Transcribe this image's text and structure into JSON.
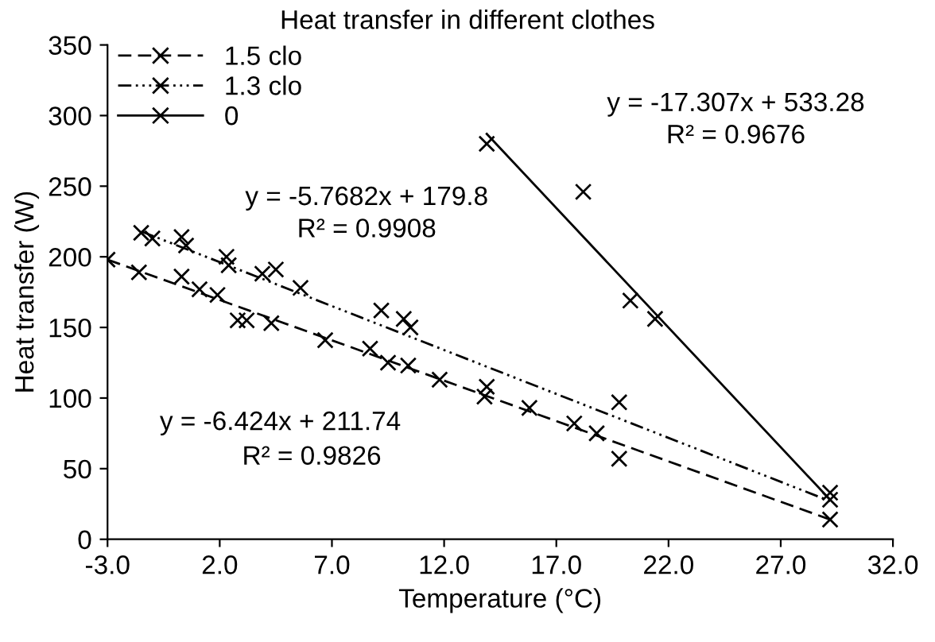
{
  "chart_data": {
    "type": "scatter",
    "title": "Heat transfer in different clothes",
    "xlabel": "Temperature (°C)",
    "ylabel": "Heat transfer (W)",
    "xlim": [
      -3,
      32
    ],
    "xticks": [
      {
        "value": -3,
        "label": "-3.0"
      },
      {
        "value": 2,
        "label": "2.0"
      },
      {
        "value": 7,
        "label": "7.0"
      },
      {
        "value": 12,
        "label": "12.0"
      },
      {
        "value": 17,
        "label": "17.0"
      },
      {
        "value": 22,
        "label": "22.0"
      },
      {
        "value": 27,
        "label": "27.0"
      },
      {
        "value": 32,
        "label": "32.0"
      }
    ],
    "ylim": [
      0,
      350
    ],
    "yticks": [
      0,
      50,
      100,
      150,
      200,
      250,
      300,
      350
    ],
    "grid": false,
    "legend": "top left",
    "marker": "cross",
    "series": [
      {
        "color": "#000000",
        "x": [
          -3.0,
          -1.6,
          0.3,
          1.1,
          1.9,
          2.8,
          3.2,
          4.3,
          6.7,
          8.7,
          9.5,
          10.4,
          11.8,
          13.8,
          15.8,
          17.8,
          18.8,
          19.8,
          29.2
        ],
        "values": [
          198,
          189,
          186,
          177,
          173,
          155,
          155,
          153,
          141,
          135,
          125,
          123,
          113,
          101,
          93,
          82,
          75,
          57,
          14
        ]
      },
      {
        "color": "#000000",
        "x": [
          -1.5,
          -1.0,
          0.3,
          0.5,
          2.3,
          2.4,
          3.9,
          4.5,
          5.6,
          9.2,
          10.2,
          10.5,
          13.9,
          19.8,
          29.2
        ],
        "values": [
          217,
          213,
          214,
          208,
          200,
          194,
          188,
          191,
          178,
          162,
          156,
          150,
          108,
          97,
          28
        ]
      },
      {
        "color": "#000000",
        "x": [
          13.9,
          18.2,
          20.3,
          21.4,
          29.2
        ],
        "values": [
          280,
          246,
          169,
          156,
          33
        ]
      },
      {
        "name": "1.5 clo",
        "type": "line",
        "color": "#000000",
        "line_style": "dashed",
        "marker": "none",
        "x": [
          -3.0,
          29.2
        ],
        "values": [
          198,
          14
        ]
      },
      {
        "name": "1.3 clo",
        "type": "line",
        "color": "#000000",
        "line_style": "dotted",
        "marker": "none",
        "x": [
          -1.5,
          29.2
        ],
        "values": [
          218,
          27
        ]
      },
      {
        "name": "0",
        "type": "line",
        "color": "#000000",
        "line_style": "solid",
        "marker": "none",
        "x": [
          13.9,
          29.2
        ],
        "values": [
          287,
          28
        ]
      }
    ],
    "annotations": [
      "y = -17.307x + 533.28",
      "R² = 0.9676",
      "y = -5.7682x + 179.8",
      "R² = 0.9908",
      "y = -6.424x + 211.74",
      "R² = 0.9826"
    ]
  }
}
